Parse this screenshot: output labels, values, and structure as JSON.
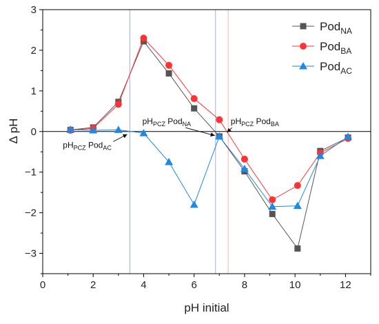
{
  "chart_data": {
    "type": "line",
    "xlabel": "pH initial",
    "ylabel": "Δ pH",
    "xlim": [
      0,
      13
    ],
    "ylim": [
      -3.5,
      3
    ],
    "xticks": [
      "0",
      "2",
      "4",
      "6",
      "8",
      "10",
      "12"
    ],
    "yticks": [
      "−3",
      "−2",
      "−1",
      "0",
      "1",
      "2",
      "3"
    ],
    "grid": false,
    "legend_position": "top-right",
    "series": [
      {
        "base": "Pod",
        "sub": "NA",
        "color": "#555555",
        "marker": "square",
        "x": [
          1.1,
          2.0,
          3.0,
          4.0,
          5.0,
          6.0,
          7.0,
          8.0,
          9.1,
          10.1,
          11.0,
          12.1
        ],
        "y": [
          0.04,
          0.1,
          0.73,
          2.22,
          1.43,
          0.57,
          -0.12,
          -0.98,
          -2.03,
          -2.88,
          -0.48,
          -0.15
        ]
      },
      {
        "base": "Pod",
        "sub": "BA",
        "color": "#ff3333",
        "marker": "circle",
        "x": [
          1.1,
          2.0,
          3.0,
          4.0,
          5.0,
          6.0,
          7.0,
          8.0,
          9.1,
          10.1,
          11.0,
          12.1
        ],
        "y": [
          0.03,
          0.08,
          0.67,
          2.3,
          1.63,
          0.81,
          0.29,
          -0.68,
          -1.68,
          -1.33,
          -0.53,
          -0.17
        ]
      },
      {
        "base": "Pod",
        "sub": "AC",
        "color": "#1e88e5",
        "marker": "triangle",
        "x": [
          1.1,
          2.0,
          3.0,
          4.0,
          5.0,
          6.0,
          7.0,
          8.0,
          9.1,
          10.1,
          11.0,
          12.1
        ],
        "y": [
          0.05,
          0.03,
          0.04,
          -0.04,
          -0.75,
          -1.8,
          -0.12,
          -0.92,
          -1.85,
          -1.83,
          -0.6,
          -0.13
        ]
      }
    ],
    "reference_lines": [
      {
        "x": 3.45,
        "color": "#8899ee"
      },
      {
        "x": 6.85,
        "color": "#8899ee"
      },
      {
        "x": 7.35,
        "color": "#ff9999"
      }
    ],
    "annotations": [
      {
        "pre": "pH",
        "presub": "PCZ",
        "base": "Pod",
        "sub": "AC",
        "at": [
          0.8,
          -0.4
        ],
        "target": [
          3.35,
          -0.07
        ]
      },
      {
        "pre": "pH",
        "presub": "PCZ",
        "base": "Pod",
        "sub": "NA",
        "at": [
          3.95,
          0.18
        ],
        "target": [
          6.82,
          -0.1
        ]
      },
      {
        "pre": "pH",
        "presub": "PCZ",
        "base": "Pod",
        "sub": "BA",
        "at": [
          7.45,
          0.18
        ],
        "target": [
          7.3,
          -0.02
        ]
      }
    ]
  }
}
